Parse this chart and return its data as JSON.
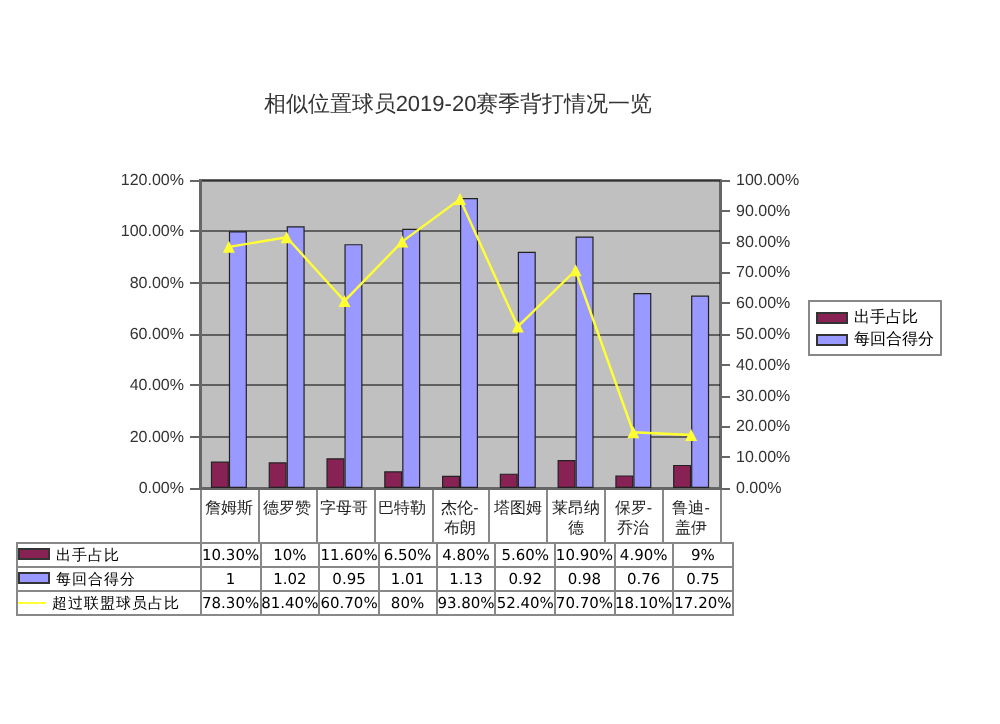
{
  "chart_data": {
    "type": "bar",
    "title": "相似位置球员2019-20赛季背打情况一览",
    "categories": [
      "詹姆斯",
      "德罗赞",
      "字母哥",
      "巴特勒",
      "杰伦-布朗",
      "塔图姆",
      "莱昂纳德",
      "保罗-乔治",
      "鲁迪-盖伊"
    ],
    "series": [
      {
        "name": "出手占比",
        "color": "#882255",
        "values": [
          0.103,
          0.1,
          0.116,
          0.065,
          0.048,
          0.056,
          0.109,
          0.049,
          0.09
        ],
        "value_labels": [
          "10.30%",
          "10%",
          "11.60%",
          "6.50%",
          "4.80%",
          "5.60%",
          "10.90%",
          "4.90%",
          "9%"
        ]
      },
      {
        "name": "每回合得分",
        "color": "#9999ff",
        "values": [
          1,
          1.02,
          0.95,
          1.01,
          1.13,
          0.92,
          0.98,
          0.76,
          0.75
        ],
        "value_labels": [
          "1",
          "1.02",
          "0.95",
          "1.01",
          "1.13",
          "0.92",
          "0.98",
          "0.76",
          "0.75"
        ]
      },
      {
        "name": "超过联盟球员占比",
        "type": "line",
        "axis": "y2",
        "color": "#ffff33",
        "marker": "triangle",
        "values": [
          0.783,
          0.814,
          0.607,
          0.8,
          0.938,
          0.524,
          0.707,
          0.181,
          0.172
        ],
        "value_labels": [
          "78.30%",
          "81.40%",
          "60.70%",
          "80%",
          "93.80%",
          "52.40%",
          "70.70%",
          "18.10%",
          "17.20%"
        ]
      }
    ],
    "ylim": [
      0,
      1.2
    ],
    "yticks": [
      {
        "value": 0,
        "label": "0.00%"
      },
      {
        "value": 0.2,
        "label": "20.00%"
      },
      {
        "value": 0.4,
        "label": "40.00%"
      },
      {
        "value": 0.6,
        "label": "60.00%"
      },
      {
        "value": 0.8,
        "label": "80.00%"
      },
      {
        "value": 1,
        "label": "100.00%"
      },
      {
        "value": 1.2,
        "label": "120.00%"
      }
    ],
    "y2lim": [
      0,
      1
    ],
    "y2ticks": [
      {
        "value": 0,
        "label": "0.00%"
      },
      {
        "value": 0.1,
        "label": "10.00%"
      },
      {
        "value": 0.2,
        "label": "20.00%"
      },
      {
        "value": 0.3,
        "label": "30.00%"
      },
      {
        "value": 0.4,
        "label": "40.00%"
      },
      {
        "value": 0.5,
        "label": "50.00%"
      },
      {
        "value": 0.6,
        "label": "60.00%"
      },
      {
        "value": 0.7,
        "label": "70.00%"
      },
      {
        "value": 0.8,
        "label": "80.00%"
      },
      {
        "value": 0.9,
        "label": "90.00%"
      },
      {
        "value": 1,
        "label": "100.00%"
      }
    ],
    "grid": "y",
    "legend": "bottom left"
  }
}
